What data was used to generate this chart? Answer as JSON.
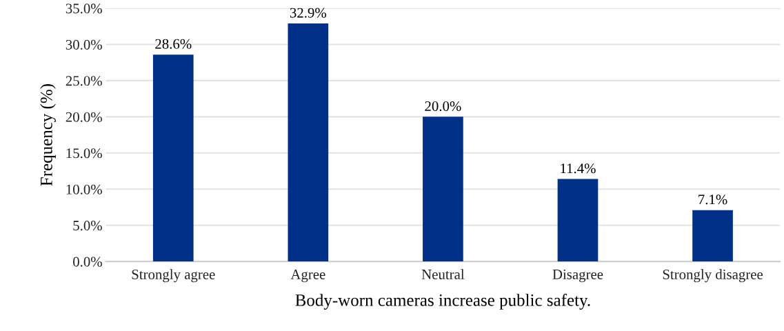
{
  "chart_data": {
    "type": "bar",
    "xlabel": "Body-worn cameras increase public safety.",
    "ylabel": "Frequency (%)",
    "categories": [
      "Strongly agree",
      "Agree",
      "Neutral",
      "Disagree",
      "Strongly disagree"
    ],
    "values": [
      28.6,
      32.9,
      20.0,
      11.4,
      7.1
    ],
    "value_labels": [
      "28.6%",
      "32.9%",
      "20.0%",
      "11.4%",
      "7.1%"
    ],
    "color": "#003087",
    "ylim": [
      0,
      35
    ],
    "yticks": [
      {
        "value": 0,
        "label": "0.0%"
      },
      {
        "value": 5,
        "label": "5.0%"
      },
      {
        "value": 10,
        "label": "10.0%"
      },
      {
        "value": 15,
        "label": "15.0%"
      },
      {
        "value": 20,
        "label": "20.0%"
      },
      {
        "value": 25,
        "label": "25.0%"
      },
      {
        "value": 30,
        "label": "30.0%"
      },
      {
        "value": 35,
        "label": "35.0%"
      }
    ],
    "grid": "y"
  }
}
